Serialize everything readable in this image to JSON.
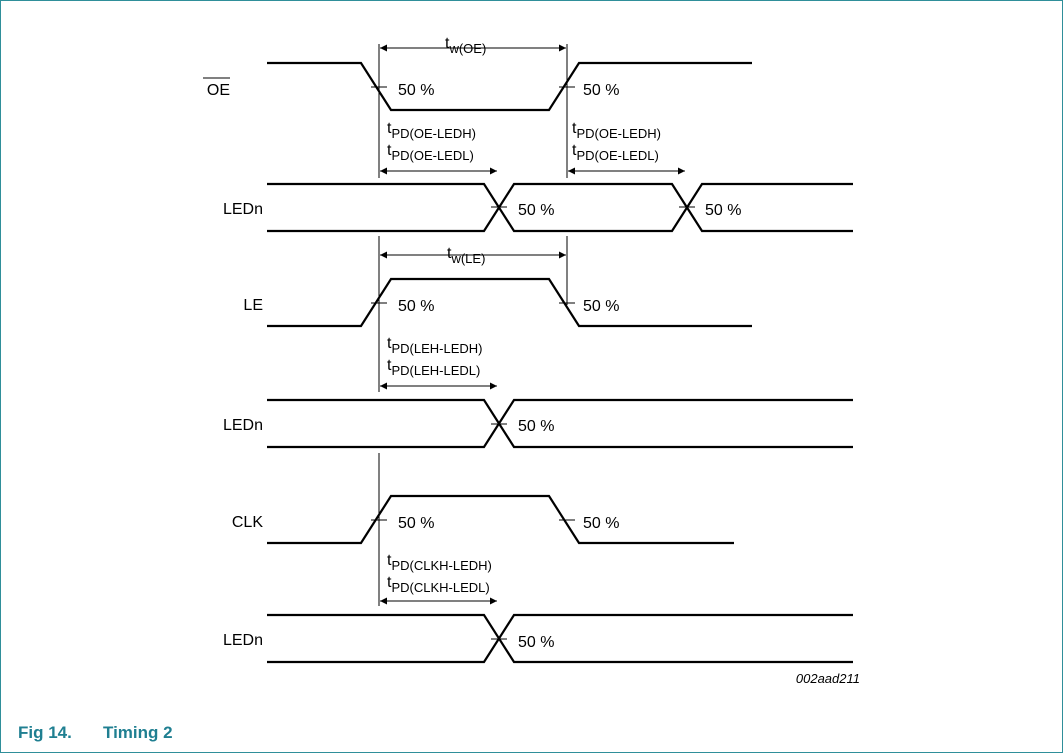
{
  "figure": {
    "number": "Fig 14.",
    "title": "Timing 2",
    "drawing_code": "002aad211"
  },
  "signals": {
    "oe": "OE",
    "ledn_1": "LEDn",
    "le": "LE",
    "ledn_2": "LEDn",
    "clk": "CLK",
    "ledn_3": "LEDn"
  },
  "threshold_label": "50 %",
  "timing": {
    "tw_oe": {
      "main": "t",
      "sub": "w(OE)"
    },
    "tw_le": {
      "main": "t",
      "sub": "w(LE)"
    },
    "tpd_oe_ledh": {
      "main": "t",
      "sub": "PD(OE-LEDH)"
    },
    "tpd_oe_ledl": {
      "main": "t",
      "sub": "PD(OE-LEDL)"
    },
    "tpd_leh_ledh": {
      "main": "t",
      "sub": "PD(LEH-LEDH)"
    },
    "tpd_leh_ledl": {
      "main": "t",
      "sub": "PD(LEH-LEDL)"
    },
    "tpd_clkh_ledh": {
      "main": "t",
      "sub": "PD(CLKH-LEDH)"
    },
    "tpd_clkh_ledl": {
      "main": "t",
      "sub": "PD(CLKH-LEDL)"
    }
  },
  "colors": {
    "accent": "#1f7f91",
    "frame": "#2f8f9a"
  }
}
